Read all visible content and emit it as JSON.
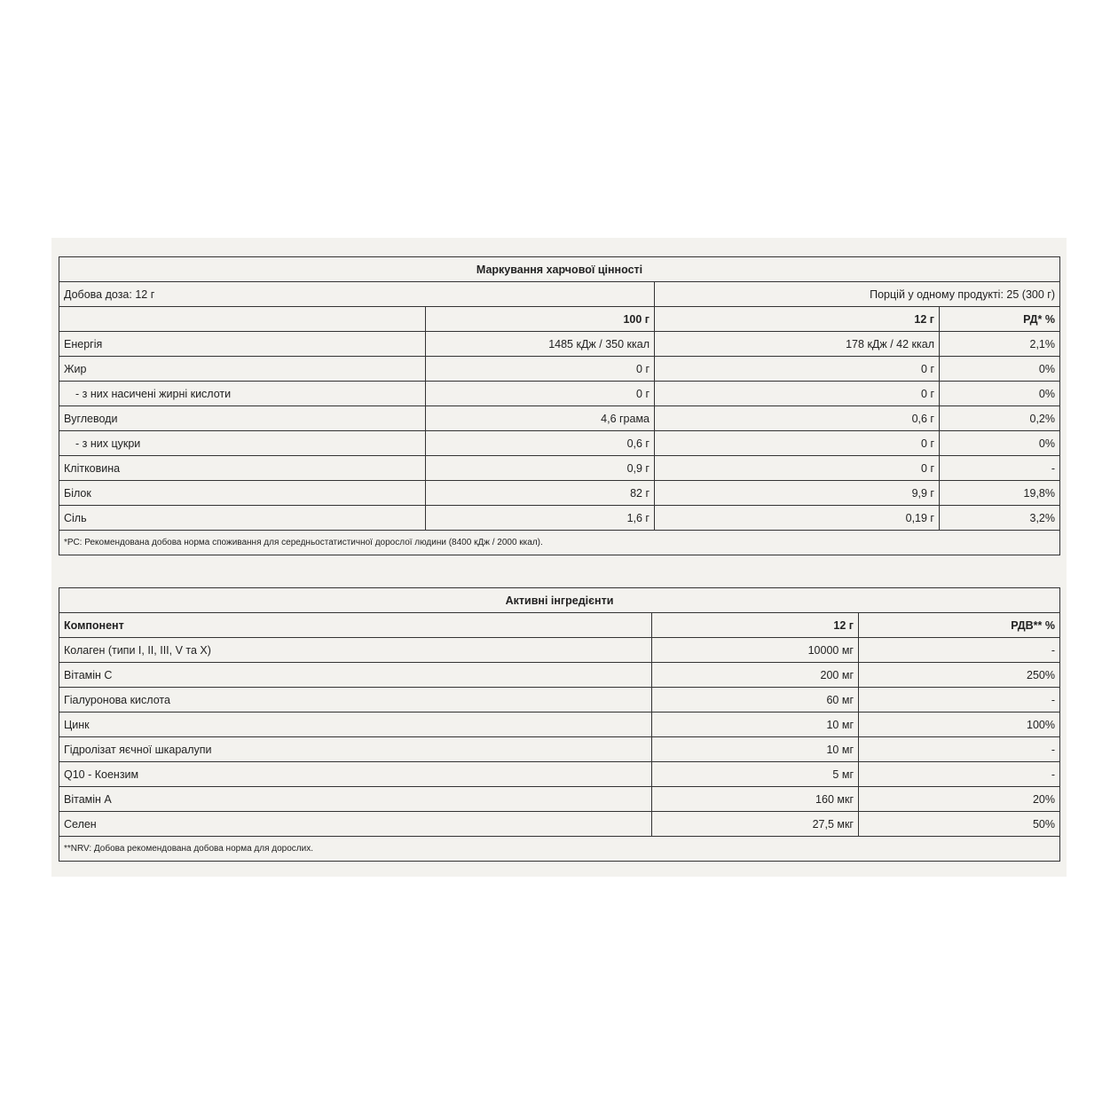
{
  "nutrition": {
    "title": "Маркування харчової цінності",
    "daily_dose": "Добова доза: 12 г",
    "servings": "Порцій у одному продукті: 25 (300 г)",
    "headers": [
      "",
      "100 г",
      "12 г",
      "РД* %"
    ],
    "rows": [
      {
        "name": "Енергія",
        "per100": "1485 кДж / 350 ккал",
        "per12": "178 кДж / 42 ккал",
        "rd": "2,1%"
      },
      {
        "name": "Жир",
        "per100": "0 г",
        "per12": "0 г",
        "rd": "0%"
      },
      {
        "name": "- з них насичені жирні кислоти",
        "per100": "0 г",
        "per12": "0 г",
        "rd": "0%"
      },
      {
        "name": "Вуглеводи",
        "per100": "4,6 грама",
        "per12": "0,6 г",
        "rd": "0,2%"
      },
      {
        "name": "- з них цукри",
        "per100": "0,6 г",
        "per12": "0 г",
        "rd": "0%"
      },
      {
        "name": "Клітковина",
        "per100": "0,9 г",
        "per12": "0 г",
        "rd": "-"
      },
      {
        "name": "Білок",
        "per100": "82 г",
        "per12": "9,9 г",
        "rd": "19,8%"
      },
      {
        "name": "Сіль",
        "per100": "1,6 г",
        "per12": "0,19 г",
        "rd": "3,2%"
      }
    ],
    "footnote": "*РС: Рекомендована добова норма споживання для середньостатистичної дорослої людини (8400 кДж / 2000 ккал)."
  },
  "active": {
    "title": "Активні інгредієнти",
    "headers": [
      "Компонент",
      "12 г",
      "РДВ** %"
    ],
    "rows": [
      {
        "name": "Колаген (типи I, II, III, V та X)",
        "amount": "10000 мг",
        "rdv": "-"
      },
      {
        "name": "Вітамін С",
        "amount": "200 мг",
        "rdv": "250%"
      },
      {
        "name": "Гіалуронова кислота",
        "amount": "60 мг",
        "rdv": "-"
      },
      {
        "name": "Цинк",
        "amount": "10 мг",
        "rdv": "100%"
      },
      {
        "name": "Гідролізат яєчної шкаралупи",
        "amount": "10 мг",
        "rdv": "-"
      },
      {
        "name": "Q10 - Коензим",
        "amount": "5 мг",
        "rdv": "-"
      },
      {
        "name": "Вітамін А",
        "amount": "160 мкг",
        "rdv": "20%"
      },
      {
        "name": "Селен",
        "amount": "27,5 мкг",
        "rdv": "50%"
      }
    ],
    "footnote": "**NRV: Добова рекомендована добова норма для дорослих."
  }
}
